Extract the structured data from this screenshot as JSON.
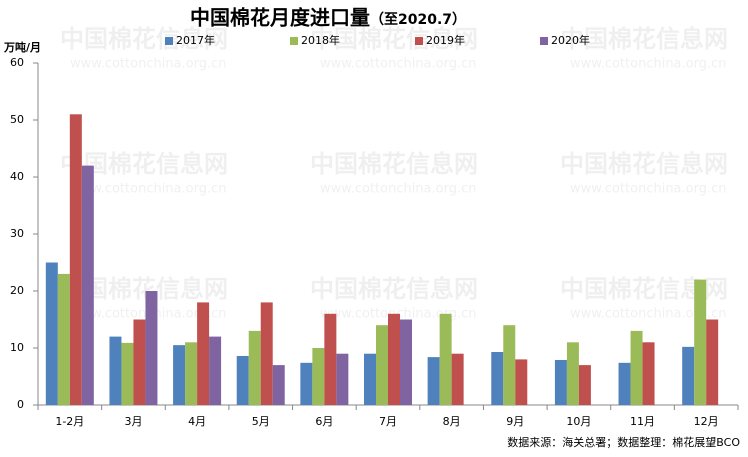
{
  "chart_data": {
    "type": "bar",
    "title": "中国棉花月度进口量",
    "subtitle": "（至2020.7）",
    "y_axis_label": "万吨/月",
    "source": "数据来源：海关总署；数据整理：棉花展望BCO",
    "watermark": {
      "name": "中国棉花信息网",
      "url": "www.cottonchina.org.cn"
    },
    "categories": [
      "1-2月",
      "3月",
      "4月",
      "5月",
      "6月",
      "7月",
      "8月",
      "9月",
      "10月",
      "11月",
      "12月"
    ],
    "series": [
      {
        "name": "2017年",
        "color": "#4f81bd",
        "values": [
          25,
          12,
          10.5,
          8.6,
          7.4,
          9,
          8.4,
          9.3,
          7.9,
          7.4,
          10.2
        ]
      },
      {
        "name": "2018年",
        "color": "#9bbb59",
        "values": [
          23,
          10.9,
          11,
          13,
          10,
          14,
          16,
          14,
          11,
          13,
          22
        ]
      },
      {
        "name": "2019年",
        "color": "#c0504d",
        "values": [
          51,
          15,
          18,
          18,
          16,
          16,
          9,
          8,
          7,
          11,
          15
        ]
      },
      {
        "name": "2020年",
        "color": "#8064a2",
        "values": [
          42,
          20,
          12,
          7,
          9,
          15,
          null,
          null,
          null,
          null,
          null
        ]
      }
    ],
    "ylim": [
      0,
      60
    ],
    "yticks": [
      0,
      10,
      20,
      30,
      40,
      50,
      60
    ],
    "grid": false,
    "legend": "top"
  }
}
